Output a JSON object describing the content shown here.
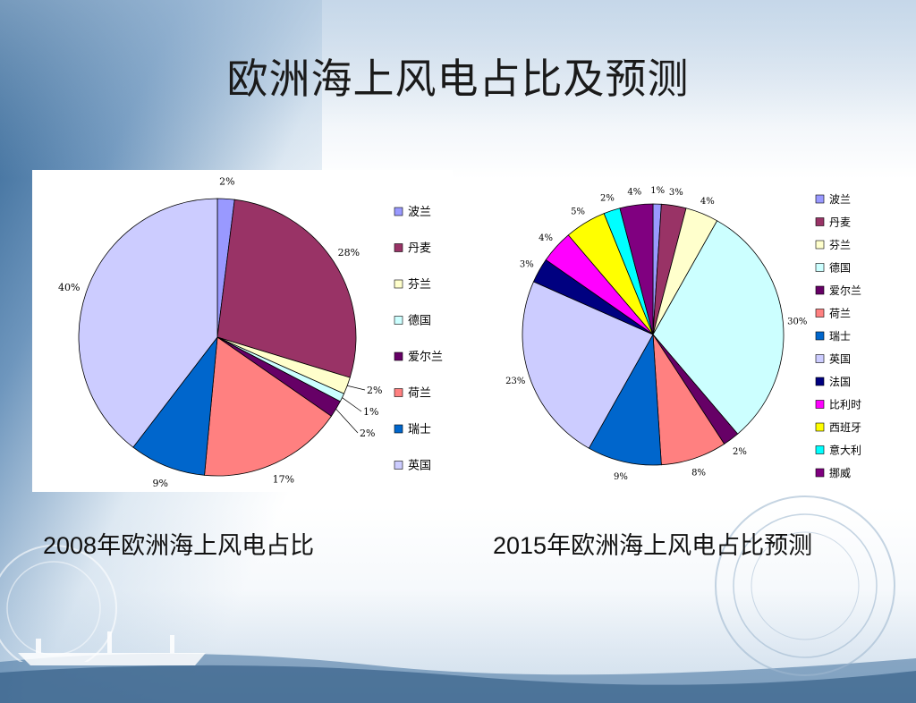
{
  "slide": {
    "title": "欧洲海上风电占比及预测",
    "caption_left": "2008年欧洲海上风电占比",
    "caption_right": "2015年欧洲海上风电占比预测"
  },
  "chart_data": [
    {
      "type": "pie",
      "title": "",
      "categories": [
        "波兰",
        "丹麦",
        "芬兰",
        "德国",
        "爱尔兰",
        "荷兰",
        "瑞士",
        "英国"
      ],
      "values": [
        2,
        28,
        2,
        1,
        2,
        17,
        9,
        40
      ],
      "labels": [
        "2%",
        "28%",
        "2%",
        "1%",
        "2%",
        "17%",
        "9%",
        "40%"
      ],
      "colors": [
        "#9999ff",
        "#993366",
        "#ffffcc",
        "#ccffff",
        "#660066",
        "#ff8080",
        "#0066cc",
        "#ccccff"
      ],
      "legend": "right"
    },
    {
      "type": "pie",
      "title": "",
      "categories": [
        "波兰",
        "丹麦",
        "芬兰",
        "德国",
        "爱尔兰",
        "荷兰",
        "瑞士",
        "英国",
        "法国",
        "比利时",
        "西班牙",
        "意大利",
        "挪威"
      ],
      "values": [
        1,
        3,
        4,
        30,
        2,
        8,
        9,
        23,
        3,
        4,
        5,
        2,
        4
      ],
      "labels": [
        "1%",
        "3%",
        "4%",
        "30%",
        "2%",
        "8%",
        "9%",
        "23%",
        "3%",
        "4%",
        "5%",
        "2%",
        "4%"
      ],
      "colors": [
        "#9999ff",
        "#993366",
        "#ffffcc",
        "#ccffff",
        "#660066",
        "#ff8080",
        "#0066cc",
        "#ccccff",
        "#000080",
        "#ff00ff",
        "#ffff00",
        "#00ffff",
        "#800080"
      ],
      "legend": "right"
    }
  ]
}
